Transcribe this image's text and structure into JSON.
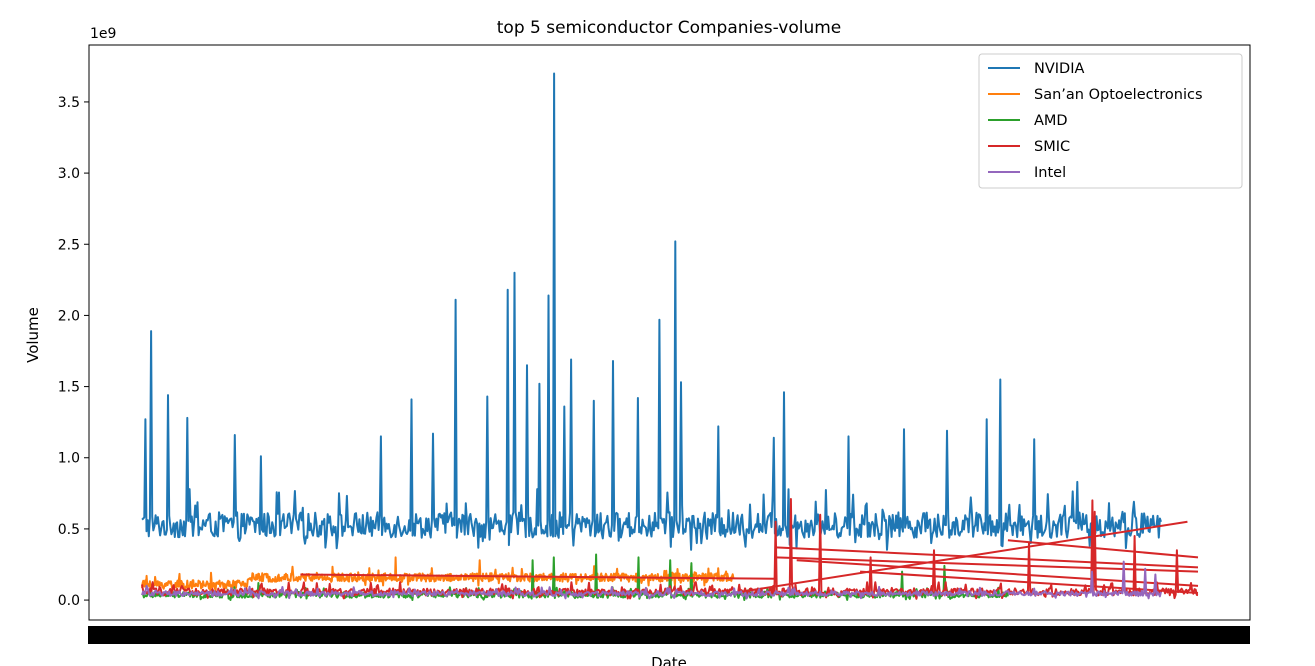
{
  "chart_data": {
    "type": "line",
    "title": "top 5 semiconductor Companies-volume",
    "xlabel": "Date",
    "ylabel": "Volume",
    "y_offset_text": "1e9",
    "y_scale_factor": 1000000000,
    "ylim": [
      -0.14,
      3.9
    ],
    "yticks": [
      0.0,
      0.5,
      1.0,
      1.5,
      2.0,
      2.5,
      3.0,
      3.5
    ],
    "ytick_labels": [
      "0.0",
      "0.5",
      "1.0",
      "1.5",
      "2.0",
      "2.5",
      "3.0",
      "3.5"
    ],
    "grid": false,
    "legend_position": "top-right",
    "x_note": "Dense overlapping date tick labels rendered as a solid black band",
    "series": [
      {
        "name": "NVIDIA",
        "color": "#1f77b4",
        "x_range": [
          0.0,
          0.965
        ],
        "baseline": 0.5,
        "noise": 0.18,
        "spikes": [
          {
            "x": 0.003,
            "y": 1.27
          },
          {
            "x": 0.009,
            "y": 1.89
          },
          {
            "x": 0.025,
            "y": 1.44
          },
          {
            "x": 0.043,
            "y": 1.28
          },
          {
            "x": 0.088,
            "y": 1.16
          },
          {
            "x": 0.113,
            "y": 1.01
          },
          {
            "x": 0.226,
            "y": 1.15
          },
          {
            "x": 0.255,
            "y": 1.41
          },
          {
            "x": 0.276,
            "y": 1.17
          },
          {
            "x": 0.297,
            "y": 2.11
          },
          {
            "x": 0.327,
            "y": 1.43
          },
          {
            "x": 0.346,
            "y": 2.18
          },
          {
            "x": 0.353,
            "y": 2.3
          },
          {
            "x": 0.365,
            "y": 1.65
          },
          {
            "x": 0.376,
            "y": 1.52
          },
          {
            "x": 0.385,
            "y": 2.14
          },
          {
            "x": 0.39,
            "y": 3.7
          },
          {
            "x": 0.4,
            "y": 1.36
          },
          {
            "x": 0.406,
            "y": 1.69
          },
          {
            "x": 0.428,
            "y": 1.4
          },
          {
            "x": 0.446,
            "y": 1.68
          },
          {
            "x": 0.47,
            "y": 1.42
          },
          {
            "x": 0.49,
            "y": 1.97
          },
          {
            "x": 0.505,
            "y": 2.52
          },
          {
            "x": 0.51,
            "y": 1.53
          },
          {
            "x": 0.546,
            "y": 1.22
          },
          {
            "x": 0.598,
            "y": 1.14
          },
          {
            "x": 0.608,
            "y": 1.46
          },
          {
            "x": 0.669,
            "y": 1.15
          },
          {
            "x": 0.722,
            "y": 1.2
          },
          {
            "x": 0.762,
            "y": 1.19
          },
          {
            "x": 0.8,
            "y": 1.27
          },
          {
            "x": 0.813,
            "y": 1.55
          },
          {
            "x": 0.845,
            "y": 1.13
          },
          {
            "x": 0.886,
            "y": 0.83
          },
          {
            "x": 0.929,
            "y": 0.62
          }
        ]
      },
      {
        "name": "San’an Optoelectronics",
        "color": "#ff7f0e",
        "x_range": [
          0.0,
          0.56
        ],
        "baseline": 0.1,
        "noise": 0.06,
        "plateau": {
          "x0": 0.1,
          "x1": 0.56,
          "y": 0.15
        },
        "spikes": [
          {
            "x": 0.02,
            "y": 0.09
          },
          {
            "x": 0.24,
            "y": 0.3
          },
          {
            "x": 0.32,
            "y": 0.28
          },
          {
            "x": 0.45,
            "y": 0.22
          },
          {
            "x": 0.52,
            "y": 0.24
          }
        ]
      },
      {
        "name": "AMD",
        "color": "#2ca02c",
        "x_range": [
          0.0,
          0.82
        ],
        "baseline": 0.03,
        "noise": 0.04,
        "spikes": [
          {
            "x": 0.11,
            "y": 0.12
          },
          {
            "x": 0.37,
            "y": 0.28
          },
          {
            "x": 0.39,
            "y": 0.3
          },
          {
            "x": 0.43,
            "y": 0.32
          },
          {
            "x": 0.47,
            "y": 0.3
          },
          {
            "x": 0.5,
            "y": 0.28
          },
          {
            "x": 0.52,
            "y": 0.26
          },
          {
            "x": 0.72,
            "y": 0.2
          },
          {
            "x": 0.76,
            "y": 0.24
          }
        ]
      },
      {
        "name": "SMIC",
        "color": "#d62728",
        "x_range": [
          0.0,
          1.0
        ],
        "baseline": 0.05,
        "noise": 0.05,
        "long_segments": [
          {
            "x0": 0.56,
            "y0": 0.05,
            "x1": 0.99,
            "y1": 0.55
          },
          {
            "x0": 0.6,
            "y0": 0.37,
            "x1": 1.0,
            "y1": 0.23
          },
          {
            "x0": 0.6,
            "y0": 0.3,
            "x1": 1.0,
            "y1": 0.2
          },
          {
            "x0": 0.62,
            "y0": 0.28,
            "x1": 1.0,
            "y1": 0.1
          },
          {
            "x0": 0.68,
            "y0": 0.2,
            "x1": 1.0,
            "y1": 0.05
          },
          {
            "x0": 0.15,
            "y0": 0.18,
            "x1": 0.6,
            "y1": 0.15
          },
          {
            "x0": 0.82,
            "y0": 0.42,
            "x1": 1.0,
            "y1": 0.3
          }
        ],
        "spikes": [
          {
            "x": 0.6,
            "y": 0.55
          },
          {
            "x": 0.614,
            "y": 0.71
          },
          {
            "x": 0.642,
            "y": 0.6
          },
          {
            "x": 0.69,
            "y": 0.3
          },
          {
            "x": 0.75,
            "y": 0.35
          },
          {
            "x": 0.84,
            "y": 0.4
          },
          {
            "x": 0.9,
            "y": 0.7
          },
          {
            "x": 0.902,
            "y": 0.62
          },
          {
            "x": 0.94,
            "y": 0.45
          },
          {
            "x": 0.98,
            "y": 0.35
          }
        ]
      },
      {
        "name": "Intel",
        "color": "#9467bd",
        "x_range": [
          0.0,
          0.965
        ],
        "baseline": 0.04,
        "noise": 0.035,
        "spikes": [
          {
            "x": 0.004,
            "y": 0.1
          },
          {
            "x": 0.2,
            "y": 0.09
          },
          {
            "x": 0.5,
            "y": 0.08
          },
          {
            "x": 0.9,
            "y": 0.2
          },
          {
            "x": 0.93,
            "y": 0.27
          },
          {
            "x": 0.95,
            "y": 0.22
          },
          {
            "x": 0.96,
            "y": 0.18
          }
        ]
      }
    ]
  }
}
